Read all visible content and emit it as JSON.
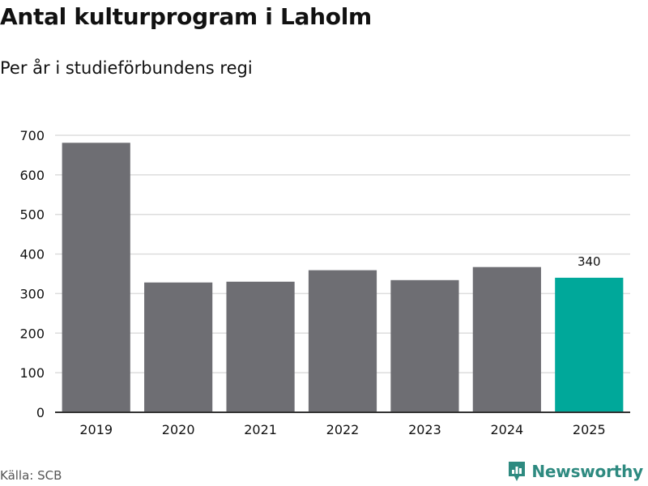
{
  "title": "Antal kulturprogram i Laholm",
  "subtitle": "Per år i studieförbundens regi",
  "source": "Källa: SCB",
  "brand": "Newsworthy",
  "colors": {
    "bar": "#6e6e73",
    "highlight": "#00a89a",
    "grid": "#dddddd",
    "axis": "#333333",
    "brand": "#2e8a80"
  },
  "chart_data": {
    "type": "bar",
    "categories": [
      "2019",
      "2020",
      "2021",
      "2022",
      "2023",
      "2024",
      "2025"
    ],
    "values": [
      681,
      328,
      330,
      359,
      334,
      367,
      340
    ],
    "highlight_index": 6,
    "data_labels": [
      {
        "index": 6,
        "text": "340"
      }
    ],
    "ylim": [
      0,
      700
    ],
    "yticks": [
      0,
      100,
      200,
      300,
      400,
      500,
      600,
      700
    ],
    "grid": true,
    "xlabel": "",
    "ylabel": ""
  }
}
